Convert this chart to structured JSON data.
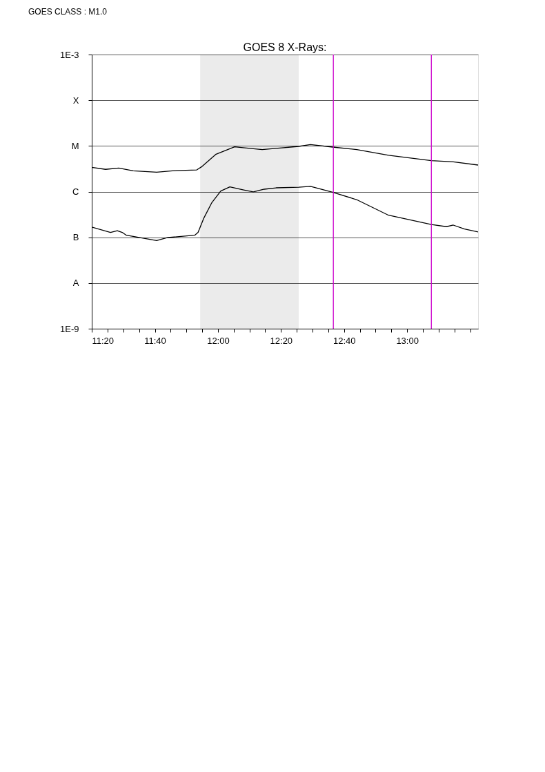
{
  "chart_data": {
    "type": "line",
    "title": "GOES 8 X-Rays:",
    "annotations": [
      "GOES CLASS : M1.0"
    ],
    "series": [
      {
        "color": "#000000",
        "x": [
          11.333,
          11.406,
          11.476,
          11.552,
          11.676,
          11.76,
          11.888,
          11.913,
          11.99,
          12.088,
          12.187,
          12.234,
          12.307,
          12.427,
          12.489,
          12.606,
          12.734,
          12.902,
          13.128,
          13.244,
          13.375
        ],
        "values": [
          3.4e-06,
          3.07e-06,
          3.29e-06,
          2.86e-06,
          2.67e-06,
          2.86e-06,
          2.99e-06,
          3.48e-06,
          6.59e-06,
          9.53e-06,
          8.71e-06,
          8.3e-06,
          8.81e-06,
          9.77e-06,
          1.07e-05,
          9.44e-06,
          8.3e-06,
          6.22e-06,
          4.75e-06,
          4.5e-06,
          3.82e-06
        ]
      },
      {
        "color": "#000000",
        "x": [
          11.333,
          11.432,
          11.468,
          11.494,
          11.516,
          11.676,
          11.735,
          11.877,
          11.895,
          11.924,
          11.968,
          12.015,
          12.063,
          12.136,
          12.187,
          12.245,
          12.307,
          12.427,
          12.489,
          12.606,
          12.734,
          12.902,
          13.128,
          13.208,
          13.244,
          13.303,
          13.375
        ],
        "values": [
          1.67e-07,
          1.28e-07,
          1.39e-07,
          1.28e-07,
          1.11e-07,
          8.51e-08,
          9.89e-08,
          1.11e-07,
          1.28e-07,
          2.56e-07,
          5.77e-07,
          1.03e-06,
          1.27e-06,
          1.09e-06,
          9.84e-07,
          1.13e-06,
          1.21e-06,
          1.25e-06,
          1.3e-06,
          9.73e-07,
          6.64e-07,
          3.04e-07,
          1.91e-07,
          1.71e-07,
          1.85e-07,
          1.52e-07,
          1.31e-07
        ]
      }
    ],
    "log": "y",
    "xlim": [
      11.333,
      13.375
    ],
    "xticks": [
      {
        "value": 11.333,
        "label": "11:20"
      },
      {
        "value": 11.4167,
        "label": null
      },
      {
        "value": 11.5,
        "label": null
      },
      {
        "value": 11.5833,
        "label": null
      },
      {
        "value": 11.6667,
        "label": "11:40"
      },
      {
        "value": 11.75,
        "label": null
      },
      {
        "value": 11.8333,
        "label": null
      },
      {
        "value": 11.9167,
        "label": null
      },
      {
        "value": 12,
        "label": "12:00"
      },
      {
        "value": 12.0833,
        "label": null
      },
      {
        "value": 12.1667,
        "label": null
      },
      {
        "value": 12.25,
        "label": null
      },
      {
        "value": 12.3333,
        "label": "12:20"
      },
      {
        "value": 12.4167,
        "label": null
      },
      {
        "value": 12.5,
        "label": null
      },
      {
        "value": 12.5833,
        "label": null
      },
      {
        "value": 12.6667,
        "label": "12:40"
      },
      {
        "value": 12.75,
        "label": null
      },
      {
        "value": 12.8333,
        "label": null
      },
      {
        "value": 12.9167,
        "label": null
      },
      {
        "value": 13,
        "label": "13:00"
      },
      {
        "value": 13.0833,
        "label": null
      },
      {
        "value": 13.1667,
        "label": null
      },
      {
        "value": 13.25,
        "label": null
      },
      {
        "value": 13.3333,
        "label": null
      }
    ],
    "ylim": [
      1e-09,
      0.001
    ],
    "yticks": [
      {
        "value": 1e-09,
        "label": "1E-9"
      },
      {
        "value": 1e-08,
        "label": "A"
      },
      {
        "value": 1e-07,
        "label": "B"
      },
      {
        "value": 1e-06,
        "label": "C"
      },
      {
        "value": 1e-05,
        "label": "M"
      },
      {
        "value": 0.0001,
        "label": "X"
      },
      {
        "value": 0.001,
        "label": "1E-3"
      }
    ],
    "grid": "y",
    "bands": [
      {
        "axis": "x",
        "from": 11.906,
        "to": 12.427
      }
    ],
    "ref_lines": [
      {
        "axis": "x",
        "value": 12.61,
        "color": "#cc00cc"
      },
      {
        "axis": "x",
        "value": 13.128,
        "color": "#cc00cc"
      }
    ]
  }
}
